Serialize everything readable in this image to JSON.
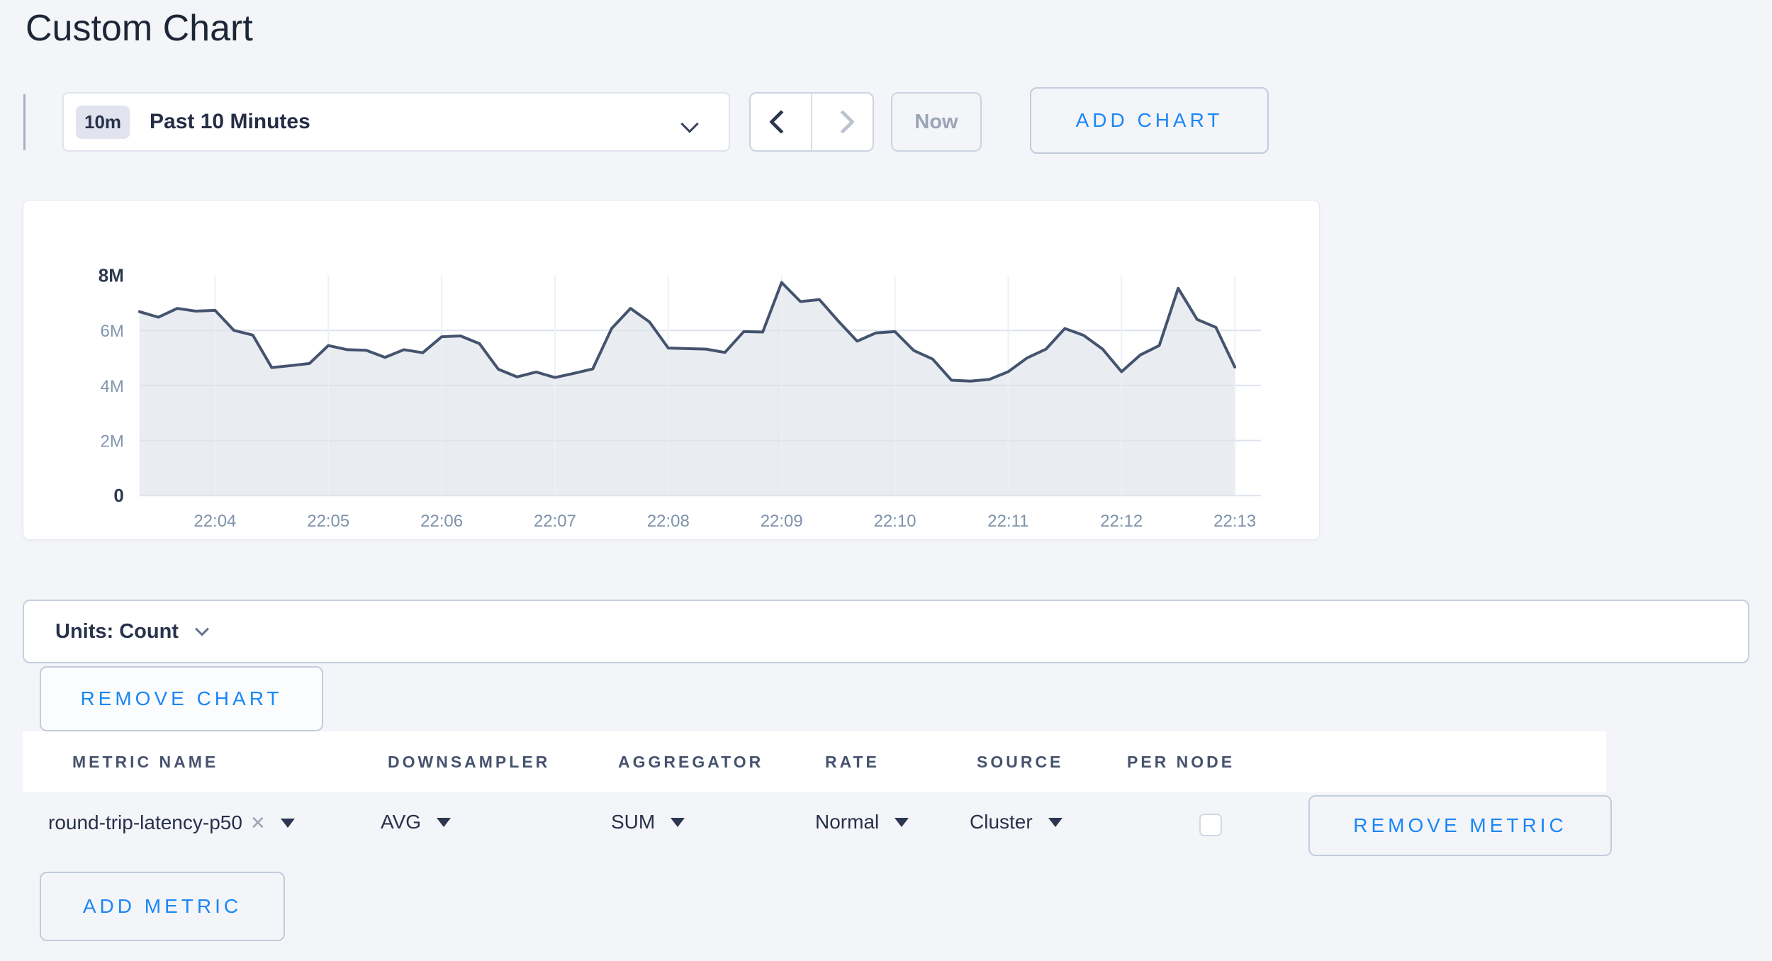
{
  "page": {
    "title": "Custom Chart",
    "background": "#f4f5f9",
    "accent_blue": "#1b87f5"
  },
  "toolbar": {
    "time_badge": "10m",
    "time_label": "Past 10 Minutes",
    "now_label": "Now",
    "add_chart_label": "ADD CHART",
    "icons": {
      "back": "chevron-left",
      "forward": "chevron-right",
      "dropdown": "chevron-down"
    }
  },
  "chart_data": {
    "type": "area",
    "title": "",
    "xlabel": "",
    "ylabel": "",
    "ylim": [
      0,
      8000000
    ],
    "x_span_seconds": 580,
    "x_start_time": "22:03:20",
    "interval_seconds": 10,
    "grid": true,
    "legend": false,
    "line_color": "#44536e",
    "fill_color": "#e9ecf1",
    "x_ticks": [
      {
        "label": "22:04",
        "sec": 40
      },
      {
        "label": "22:05",
        "sec": 100
      },
      {
        "label": "22:06",
        "sec": 160
      },
      {
        "label": "22:07",
        "sec": 220
      },
      {
        "label": "22:08",
        "sec": 280
      },
      {
        "label": "22:09",
        "sec": 340
      },
      {
        "label": "22:10",
        "sec": 400
      },
      {
        "label": "22:11",
        "sec": 460
      },
      {
        "label": "22:12",
        "sec": 520
      },
      {
        "label": "22:13",
        "sec": 580
      }
    ],
    "y_ticks": [
      {
        "label": "0",
        "value": 0,
        "strong": true
      },
      {
        "label": "2M",
        "value": 2000000,
        "strong": false
      },
      {
        "label": "4M",
        "value": 4000000,
        "strong": false
      },
      {
        "label": "6M",
        "value": 6000000,
        "strong": false
      },
      {
        "label": "8M",
        "value": 8000000,
        "strong": true
      }
    ],
    "series": [
      {
        "name": "round-trip-latency-p50",
        "values": [
          6680000,
          6480000,
          6800000,
          6700000,
          6730000,
          6000000,
          5830000,
          4650000,
          4720000,
          4800000,
          5450000,
          5300000,
          5280000,
          5020000,
          5300000,
          5190000,
          5770000,
          5800000,
          5520000,
          4590000,
          4310000,
          4490000,
          4290000,
          4440000,
          4600000,
          6070000,
          6800000,
          6310000,
          5360000,
          5340000,
          5320000,
          5200000,
          5960000,
          5940000,
          7740000,
          7050000,
          7120000,
          6340000,
          5610000,
          5910000,
          5960000,
          5270000,
          4960000,
          4190000,
          4160000,
          4220000,
          4500000,
          5000000,
          5320000,
          6070000,
          5820000,
          5320000,
          4500000,
          5110000,
          5450000,
          7530000,
          6400000,
          6110000,
          4670000
        ]
      }
    ]
  },
  "units_bar": {
    "label": "Units: Count"
  },
  "chart_actions": {
    "remove_chart_label": "REMOVE CHART"
  },
  "metrics_table": {
    "columns": [
      "METRIC NAME",
      "DOWNSAMPLER",
      "AGGREGATOR",
      "RATE",
      "SOURCE",
      "PER NODE"
    ],
    "rows": [
      {
        "metric_name": "round-trip-latency-p50",
        "clear_icon": "×",
        "downsampler": "AVG",
        "aggregator": "SUM",
        "rate": "Normal",
        "source": "Cluster",
        "per_node_checked": false,
        "remove_label": "REMOVE METRIC"
      }
    ],
    "add_metric_label": "ADD METRIC"
  }
}
